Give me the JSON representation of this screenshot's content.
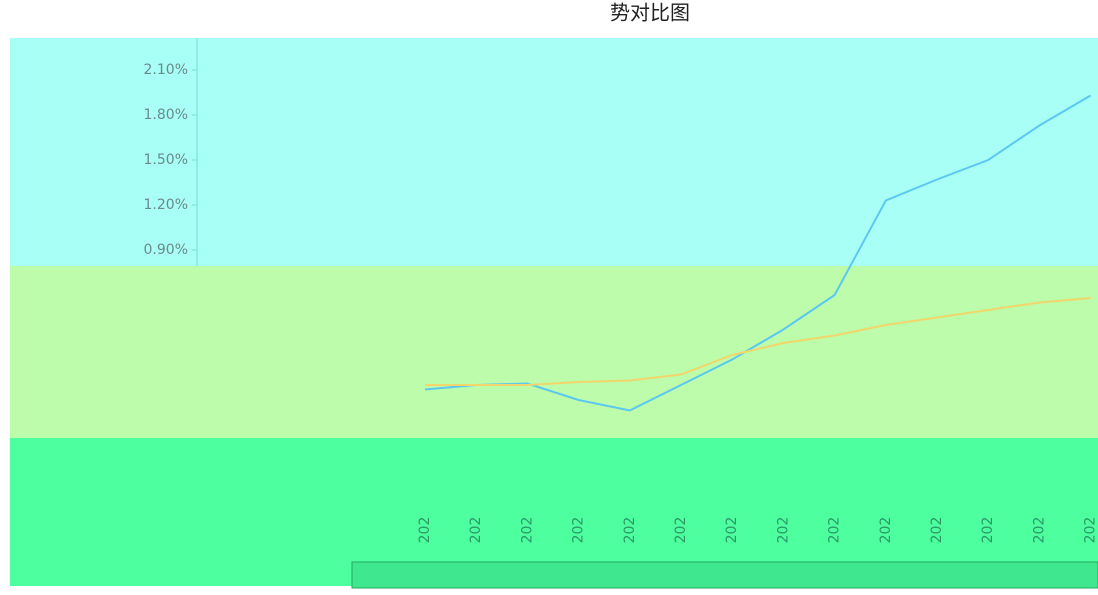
{
  "chart_data": {
    "type": "line",
    "title": "势对比图",
    "categories": [
      "202",
      "202",
      "202",
      "202",
      "202",
      "202",
      "202",
      "202",
      "202",
      "202",
      "202",
      "202",
      "202",
      "202"
    ],
    "series": [
      {
        "color": "#5cc8f0",
        "values": [
          -0.03,
          0.0,
          0.01,
          -0.1,
          -0.17,
          0.0,
          0.17,
          0.37,
          0.6,
          1.23,
          1.37,
          1.5,
          1.73,
          1.93
        ]
      },
      {
        "color": "#f2d66b",
        "values": [
          0.0,
          0.0,
          0.0,
          0.02,
          0.03,
          0.07,
          0.2,
          0.28,
          0.33,
          0.4,
          0.45,
          0.5,
          0.55,
          0.58
        ]
      }
    ],
    "ylim": [
      -0.3,
      2.25
    ],
    "yticks": [
      {
        "value": 0.9,
        "label": "0.90%"
      },
      {
        "value": 1.2,
        "label": "1.20%"
      },
      {
        "value": 1.5,
        "label": "1.50%"
      },
      {
        "value": 1.8,
        "label": "1.80%"
      },
      {
        "value": 2.1,
        "label": "2.10%"
      }
    ]
  }
}
